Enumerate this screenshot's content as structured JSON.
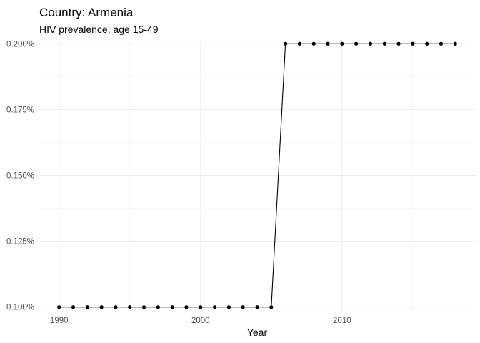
{
  "chart_data": {
    "type": "line",
    "title": "Country: Armenia",
    "subtitle": "HIV prevalence, age 15-49",
    "xlabel": "Year",
    "ylabel": "",
    "xlim": [
      1988.6,
      2019.4
    ],
    "ylim": [
      0.0983,
      0.2017
    ],
    "x_ticks": [
      1990,
      2000,
      2010
    ],
    "x_minor_ticks": [
      1995,
      2005,
      2015
    ],
    "y_ticks": [
      0.1,
      0.125,
      0.15,
      0.175,
      0.2
    ],
    "y_tick_labels": [
      "0.100%",
      "0.125%",
      "0.150%",
      "0.175%",
      "0.200%"
    ],
    "grid": true,
    "legend": "none",
    "line_color": "#000000",
    "series": [
      {
        "x": [
          1990,
          1991,
          1992,
          1993,
          1994,
          1995,
          1996,
          1997,
          1998,
          1999,
          2000,
          2001,
          2002,
          2003,
          2004,
          2005,
          2006,
          2007,
          2008,
          2009,
          2010,
          2011,
          2012,
          2013,
          2014,
          2015,
          2016,
          2017,
          2018
        ],
        "values": [
          0.1,
          0.1,
          0.1,
          0.1,
          0.1,
          0.1,
          0.1,
          0.1,
          0.1,
          0.1,
          0.1,
          0.1,
          0.1,
          0.1,
          0.1,
          0.1,
          0.2,
          0.2,
          0.2,
          0.2,
          0.2,
          0.2,
          0.2,
          0.2,
          0.2,
          0.2,
          0.2,
          0.2,
          0.2
        ]
      }
    ]
  }
}
